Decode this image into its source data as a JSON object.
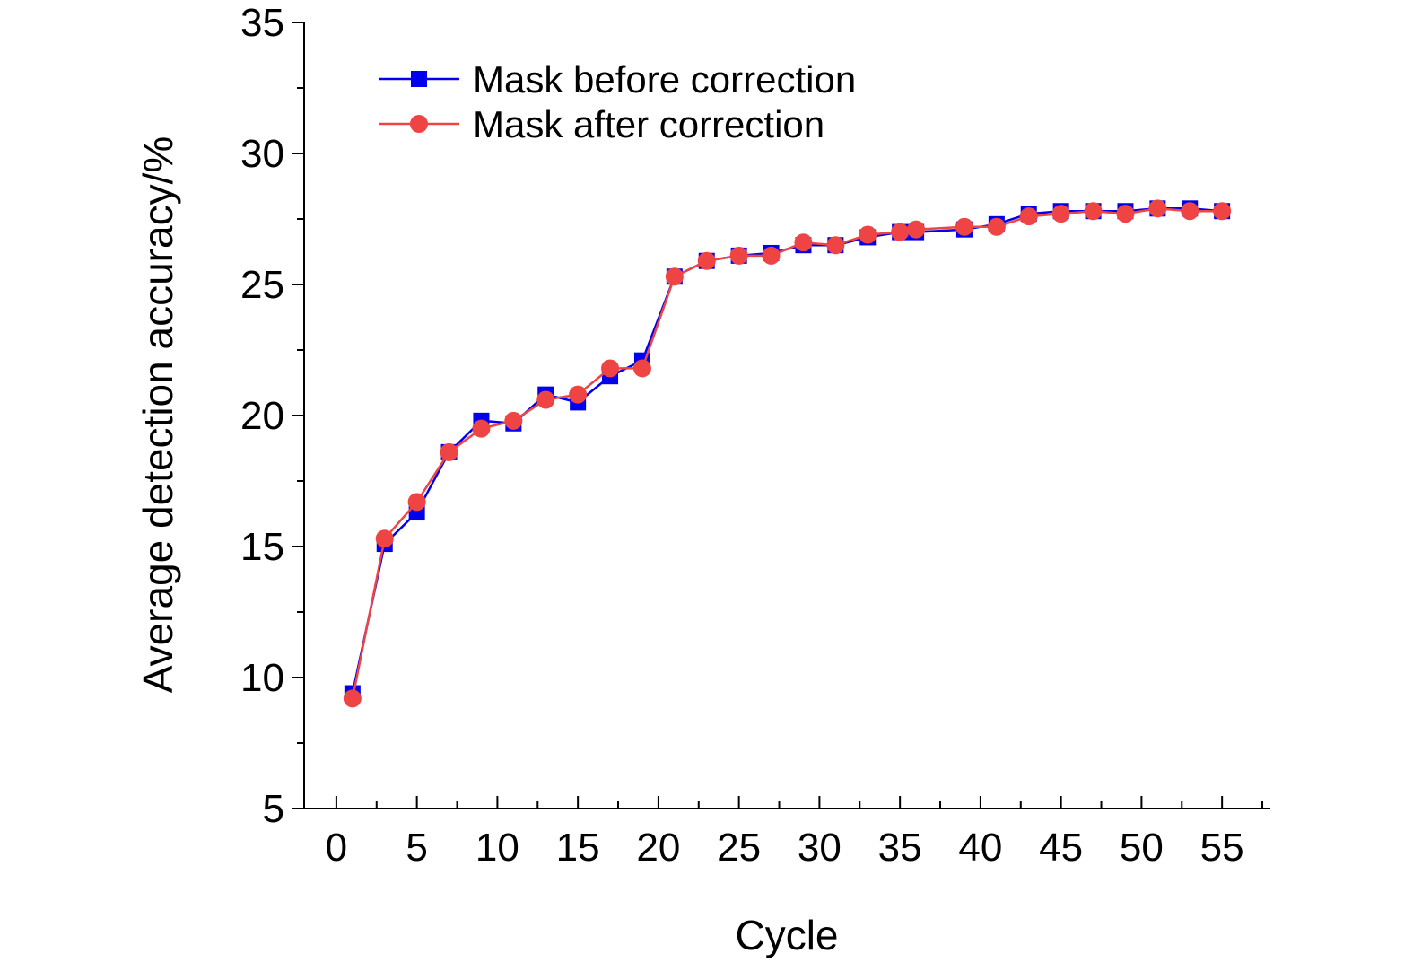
{
  "chart_data": {
    "type": "line",
    "xlabel": "Cycle",
    "ylabel": "Average detection accuracy/%",
    "xlim": [
      -2,
      58
    ],
    "ylim": [
      5,
      35
    ],
    "xticks": [
      0,
      5,
      10,
      15,
      20,
      25,
      30,
      35,
      40,
      45,
      50,
      55
    ],
    "yticks": [
      5,
      10,
      15,
      20,
      25,
      30,
      35
    ],
    "grid": false,
    "legend_position": "top-left",
    "series": [
      {
        "name": "Mask before correction",
        "color": "#0000ee",
        "marker": "square",
        "x": [
          1,
          3,
          5,
          7,
          9,
          11,
          13,
          15,
          17,
          19,
          21,
          23,
          25,
          27,
          29,
          31,
          33,
          35,
          36,
          39,
          41,
          43,
          45,
          47,
          49,
          51,
          53,
          55
        ],
        "y": [
          9.4,
          15.1,
          16.3,
          18.6,
          19.8,
          19.7,
          20.8,
          20.5,
          21.5,
          22.1,
          25.3,
          25.9,
          26.1,
          26.2,
          26.5,
          26.5,
          26.8,
          27.0,
          27.0,
          27.1,
          27.3,
          27.7,
          27.8,
          27.8,
          27.8,
          27.9,
          27.9,
          27.8
        ]
      },
      {
        "name": "Mask after correction",
        "color": "#ee4444",
        "marker": "circle",
        "x": [
          1,
          3,
          5,
          7,
          9,
          11,
          13,
          15,
          17,
          19,
          21,
          23,
          25,
          27,
          29,
          31,
          33,
          35,
          36,
          39,
          41,
          43,
          45,
          47,
          49,
          51,
          53,
          55
        ],
        "y": [
          9.2,
          15.3,
          16.7,
          18.6,
          19.5,
          19.8,
          20.6,
          20.8,
          21.8,
          21.8,
          25.3,
          25.9,
          26.1,
          26.1,
          26.6,
          26.5,
          26.9,
          27.0,
          27.1,
          27.2,
          27.2,
          27.6,
          27.7,
          27.8,
          27.7,
          27.9,
          27.8,
          27.8
        ]
      }
    ]
  }
}
